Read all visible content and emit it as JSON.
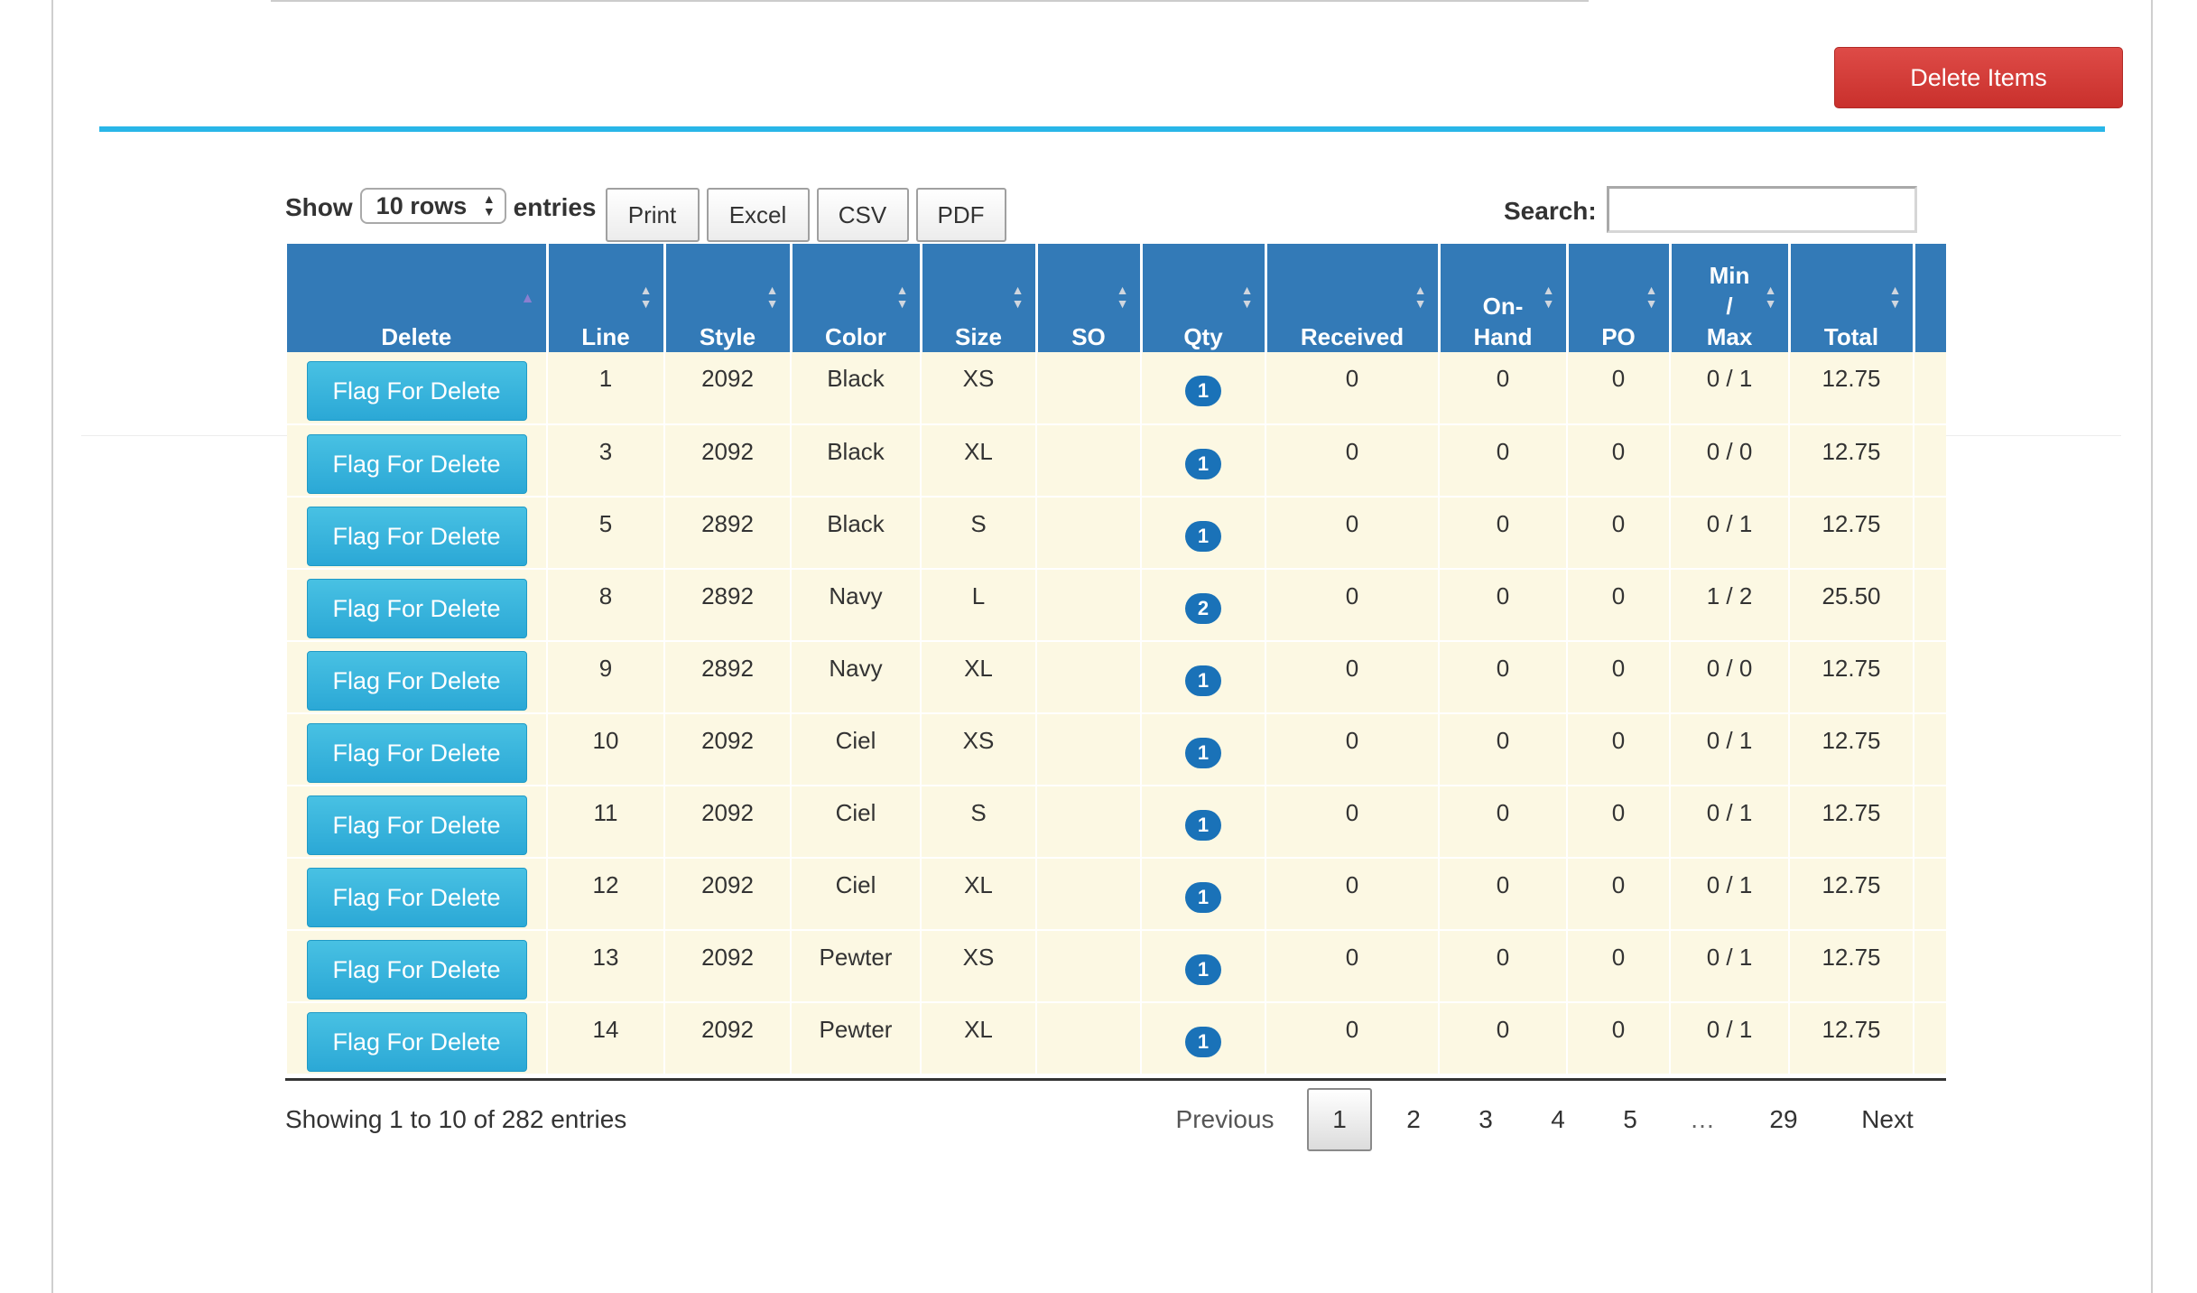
{
  "header": {
    "delete_items_label": "Delete Items"
  },
  "controls": {
    "show_label": "Show",
    "rows_value": "10 rows",
    "entries_label": "entries",
    "buttons": [
      "Print",
      "Excel",
      "CSV",
      "PDF"
    ],
    "search_label": "Search:",
    "search_value": ""
  },
  "table": {
    "columns": [
      {
        "key": "delete",
        "lines": [
          "Delete"
        ]
      },
      {
        "key": "line",
        "lines": [
          "Line"
        ]
      },
      {
        "key": "style",
        "lines": [
          "Style"
        ]
      },
      {
        "key": "color",
        "lines": [
          "Color"
        ]
      },
      {
        "key": "size",
        "lines": [
          "Size"
        ]
      },
      {
        "key": "so",
        "lines": [
          "SO"
        ]
      },
      {
        "key": "qty",
        "lines": [
          "Qty"
        ]
      },
      {
        "key": "received",
        "lines": [
          "Received"
        ]
      },
      {
        "key": "onhand",
        "lines": [
          "On-",
          "Hand"
        ]
      },
      {
        "key": "po",
        "lines": [
          "PO"
        ]
      },
      {
        "key": "minmax",
        "lines": [
          "Min",
          "/",
          "Max"
        ]
      },
      {
        "key": "total",
        "lines": [
          "Total"
        ]
      },
      {
        "key": "extra",
        "lines": [
          ""
        ]
      }
    ],
    "flag_label": "Flag For Delete",
    "rows": [
      {
        "line": "1",
        "style": "2092",
        "color": "Black",
        "size": "XS",
        "so": "",
        "qty": "1",
        "received": "0",
        "onhand": "0",
        "po": "0",
        "minmax": "0 / 1",
        "total": "12.75"
      },
      {
        "line": "3",
        "style": "2092",
        "color": "Black",
        "size": "XL",
        "so": "",
        "qty": "1",
        "received": "0",
        "onhand": "0",
        "po": "0",
        "minmax": "0 / 0",
        "total": "12.75"
      },
      {
        "line": "5",
        "style": "2892",
        "color": "Black",
        "size": "S",
        "so": "",
        "qty": "1",
        "received": "0",
        "onhand": "0",
        "po": "0",
        "minmax": "0 / 1",
        "total": "12.75"
      },
      {
        "line": "8",
        "style": "2892",
        "color": "Navy",
        "size": "L",
        "so": "",
        "qty": "2",
        "received": "0",
        "onhand": "0",
        "po": "0",
        "minmax": "1 / 2",
        "total": "25.50"
      },
      {
        "line": "9",
        "style": "2892",
        "color": "Navy",
        "size": "XL",
        "so": "",
        "qty": "1",
        "received": "0",
        "onhand": "0",
        "po": "0",
        "minmax": "0 / 0",
        "total": "12.75"
      },
      {
        "line": "10",
        "style": "2092",
        "color": "Ciel",
        "size": "XS",
        "so": "",
        "qty": "1",
        "received": "0",
        "onhand": "0",
        "po": "0",
        "minmax": "0 / 1",
        "total": "12.75"
      },
      {
        "line": "11",
        "style": "2092",
        "color": "Ciel",
        "size": "S",
        "so": "",
        "qty": "1",
        "received": "0",
        "onhand": "0",
        "po": "0",
        "minmax": "0 / 1",
        "total": "12.75"
      },
      {
        "line": "12",
        "style": "2092",
        "color": "Ciel",
        "size": "XL",
        "so": "",
        "qty": "1",
        "received": "0",
        "onhand": "0",
        "po": "0",
        "minmax": "0 / 1",
        "total": "12.75"
      },
      {
        "line": "13",
        "style": "2092",
        "color": "Pewter",
        "size": "XS",
        "so": "",
        "qty": "1",
        "received": "0",
        "onhand": "0",
        "po": "0",
        "minmax": "0 / 1",
        "total": "12.75"
      },
      {
        "line": "14",
        "style": "2092",
        "color": "Pewter",
        "size": "XL",
        "so": "",
        "qty": "1",
        "received": "0",
        "onhand": "0",
        "po": "0",
        "minmax": "0 / 1",
        "total": "12.75"
      }
    ]
  },
  "footer": {
    "info": "Showing 1 to 10 of 282 entries",
    "previous_label": "Previous",
    "pages": [
      "1",
      "2",
      "3",
      "4",
      "5"
    ],
    "current_page": "1",
    "ellipsis": "…",
    "last_page": "29",
    "next_label": "Next"
  },
  "colors": {
    "header_bg": "#337ab7",
    "row_bg": "#fcf8e3",
    "flag_button": "#2ba8d6",
    "delete_button": "#c9302c",
    "accent_rule": "#29b6e8",
    "qty_badge": "#1a72b8"
  }
}
